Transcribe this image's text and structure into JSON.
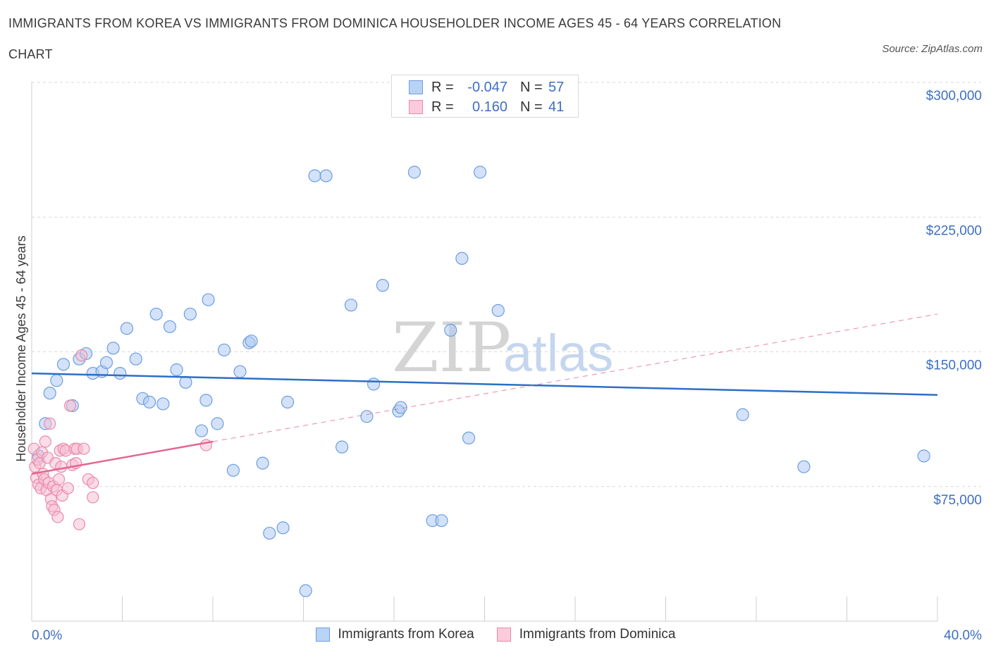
{
  "title_line1": "IMMIGRANTS FROM KOREA VS IMMIGRANTS FROM DOMINICA HOUSEHOLDER INCOME AGES 45 - 64 YEARS CORRELATION",
  "title_line2": "CHART",
  "source": "Source: ZipAtlas.com",
  "watermark": {
    "zip": "ZIP",
    "atlas": "atlas"
  },
  "legend_top": {
    "rows": [
      {
        "r_label": "R =",
        "r_value": "-0.047",
        "n_label": "N =",
        "n_value": "57"
      },
      {
        "r_label": "R =",
        "r_value": "0.160",
        "n_label": "N =",
        "n_value": "41"
      }
    ]
  },
  "legend_bottom": [
    "Immigrants from Korea",
    "Immigrants from Dominica"
  ],
  "colors": {
    "korea_fill": "#aecbf2",
    "korea_stroke": "#6d9ee0",
    "korea_line": "#2b6fc7",
    "dominica_fill": "#f8bcd0",
    "dominica_stroke": "#ea8aaa",
    "dominica_line": "#e36791",
    "axis_label": "#3d6fc4",
    "grid": "#d9d9d9"
  },
  "chart_data": {
    "type": "scatter",
    "xlabel": "",
    "ylabel": "Householder Income Ages 45 - 64 years",
    "xlim": [
      0,
      40
    ],
    "ylim": [
      0,
      300000
    ],
    "x_tick_labels": [
      "0.0%",
      "40.0%"
    ],
    "y_ticks": [
      75000,
      150000,
      225000,
      300000
    ],
    "y_tick_labels": [
      "$75,000",
      "$150,000",
      "$225,000",
      "$300,000"
    ],
    "grid": true,
    "legend_position": "top-center",
    "series": [
      {
        "name": "Immigrants from Korea",
        "r": -0.047,
        "n": 57,
        "trend": {
          "x": [
            0,
            40
          ],
          "y": [
            138000,
            126000
          ]
        },
        "points": [
          [
            0.3,
            92000
          ],
          [
            0.6,
            110000
          ],
          [
            0.8,
            127000
          ],
          [
            1.1,
            134000
          ],
          [
            1.4,
            143000
          ],
          [
            1.8,
            120000
          ],
          [
            2.1,
            146000
          ],
          [
            2.4,
            149000
          ],
          [
            2.7,
            138000
          ],
          [
            3.1,
            139000
          ],
          [
            3.3,
            144000
          ],
          [
            3.6,
            152000
          ],
          [
            3.9,
            138000
          ],
          [
            4.2,
            163000
          ],
          [
            4.6,
            146000
          ],
          [
            4.9,
            124000
          ],
          [
            5.2,
            122000
          ],
          [
            5.5,
            171000
          ],
          [
            5.8,
            121000
          ],
          [
            6.1,
            164000
          ],
          [
            6.4,
            140000
          ],
          [
            6.8,
            133000
          ],
          [
            7.0,
            171000
          ],
          [
            7.5,
            106000
          ],
          [
            7.7,
            123000
          ],
          [
            7.8,
            179000
          ],
          [
            8.2,
            110000
          ],
          [
            8.5,
            151000
          ],
          [
            8.9,
            84000
          ],
          [
            9.2,
            139000
          ],
          [
            9.6,
            155000
          ],
          [
            9.7,
            156000
          ],
          [
            10.2,
            88000
          ],
          [
            10.5,
            49000
          ],
          [
            11.1,
            52000
          ],
          [
            11.3,
            122000
          ],
          [
            12.1,
            17000
          ],
          [
            12.5,
            248000
          ],
          [
            13.0,
            248000
          ],
          [
            13.7,
            97000
          ],
          [
            14.1,
            176000
          ],
          [
            14.8,
            114000
          ],
          [
            15.1,
            132000
          ],
          [
            15.5,
            187000
          ],
          [
            16.2,
            117000
          ],
          [
            16.3,
            119000
          ],
          [
            16.9,
            250000
          ],
          [
            17.7,
            56000
          ],
          [
            18.1,
            56000
          ],
          [
            18.5,
            162000
          ],
          [
            19.0,
            202000
          ],
          [
            19.3,
            102000
          ],
          [
            19.8,
            250000
          ],
          [
            20.6,
            173000
          ],
          [
            31.4,
            115000
          ],
          [
            34.1,
            86000
          ],
          [
            39.4,
            92000
          ]
        ]
      },
      {
        "name": "Immigrants from Dominica",
        "r": 0.16,
        "n": 41,
        "trend_solid": {
          "x": [
            0,
            8
          ],
          "y": [
            82000,
            100000
          ]
        },
        "trend_dashed": {
          "x": [
            8,
            40
          ],
          "y": [
            100000,
            171000
          ]
        },
        "points": [
          [
            0.1,
            96000
          ],
          [
            0.15,
            86000
          ],
          [
            0.2,
            80000
          ],
          [
            0.25,
            90000
          ],
          [
            0.3,
            76000
          ],
          [
            0.35,
            88000
          ],
          [
            0.4,
            74000
          ],
          [
            0.45,
            94000
          ],
          [
            0.5,
            82000
          ],
          [
            0.55,
            79000
          ],
          [
            0.6,
            100000
          ],
          [
            0.65,
            73000
          ],
          [
            0.7,
            91000
          ],
          [
            0.75,
            77000
          ],
          [
            0.8,
            110000
          ],
          [
            0.85,
            68000
          ],
          [
            0.9,
            64000
          ],
          [
            0.95,
            75000
          ],
          [
            1.0,
            62000
          ],
          [
            1.05,
            88000
          ],
          [
            1.1,
            73000
          ],
          [
            1.15,
            58000
          ],
          [
            1.2,
            79000
          ],
          [
            1.25,
            95000
          ],
          [
            1.3,
            86000
          ],
          [
            1.35,
            70000
          ],
          [
            1.4,
            96000
          ],
          [
            1.5,
            95000
          ],
          [
            1.6,
            74000
          ],
          [
            1.7,
            120000
          ],
          [
            1.8,
            87000
          ],
          [
            1.9,
            96000
          ],
          [
            1.95,
            88000
          ],
          [
            2.0,
            96000
          ],
          [
            2.1,
            54000
          ],
          [
            2.2,
            148000
          ],
          [
            2.3,
            96000
          ],
          [
            2.5,
            79000
          ],
          [
            2.7,
            77000
          ],
          [
            2.7,
            69000
          ],
          [
            7.7,
            98000
          ]
        ]
      }
    ]
  }
}
